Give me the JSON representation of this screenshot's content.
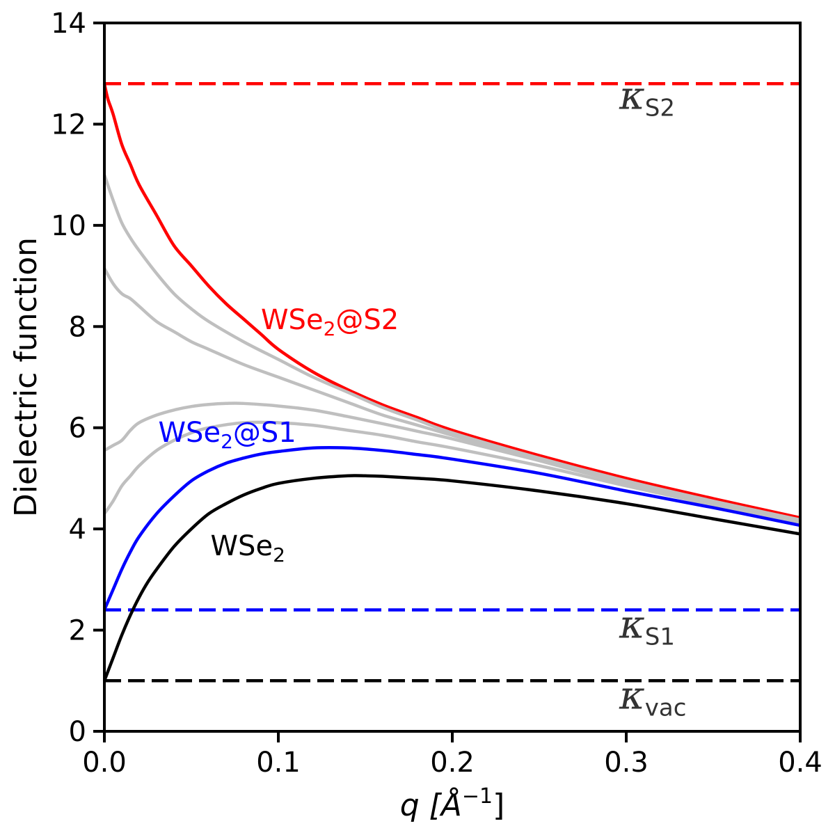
{
  "chart_data": {
    "type": "line",
    "title": "",
    "xlabel_prefix": "q [",
    "xlabel_unit": "Å",
    "xlabel_exp": "−1",
    "xlabel_suffix": "]",
    "ylabel": "Dielectric function",
    "xlim": [
      0.0,
      0.4
    ],
    "ylim": [
      0,
      14
    ],
    "grid": false,
    "xticks": [
      0.0,
      0.1,
      0.2,
      0.3,
      0.4
    ],
    "xtick_labels": [
      "0.0",
      "0.1",
      "0.2",
      "0.3",
      "0.4"
    ],
    "yticks": [
      0,
      2,
      4,
      6,
      8,
      10,
      12,
      14
    ],
    "ytick_labels": [
      "0",
      "2",
      "4",
      "6",
      "8",
      "10",
      "12",
      "14"
    ],
    "reference_lines": [
      {
        "name": "kappa-s2",
        "symbol": "κ",
        "sub": "S2",
        "y": 12.8,
        "color": "#ff0000",
        "label_x": 0.296,
        "label_y": 12.3
      },
      {
        "name": "kappa-s1",
        "symbol": "κ",
        "sub": "S1",
        "y": 2.4,
        "color": "#0000ff",
        "label_x": 0.296,
        "label_y": 1.85
      },
      {
        "name": "kappa-vac",
        "symbol": "κ",
        "sub": "vac",
        "y": 1.0,
        "color": "#000000",
        "label_x": 0.296,
        "label_y": 0.45
      }
    ],
    "series": [
      {
        "name": "WSe2@S2",
        "color": "#ff0000",
        "x": [
          0,
          0.002,
          0.005,
          0.01,
          0.015,
          0.02,
          0.03,
          0.04,
          0.05,
          0.06,
          0.07,
          0.08,
          0.09,
          0.1,
          0.12,
          0.14,
          0.16,
          0.18,
          0.2,
          0.25,
          0.3,
          0.35,
          0.4
        ],
        "y": [
          12.8,
          12.5,
          12.2,
          11.6,
          11.2,
          10.8,
          10.2,
          9.6,
          9.2,
          8.8,
          8.45,
          8.15,
          7.85,
          7.55,
          7.1,
          6.75,
          6.45,
          6.2,
          5.95,
          5.45,
          5.0,
          4.6,
          4.22
        ]
      },
      {
        "name": "intermediate-1",
        "color": "#bfbfbf",
        "x": [
          0,
          0.005,
          0.01,
          0.015,
          0.02,
          0.03,
          0.04,
          0.05,
          0.06,
          0.08,
          0.1,
          0.12,
          0.14,
          0.16,
          0.18,
          0.2,
          0.25,
          0.3,
          0.35,
          0.4
        ],
        "y": [
          11.0,
          10.5,
          10.05,
          9.75,
          9.5,
          9.05,
          8.65,
          8.35,
          8.1,
          7.7,
          7.35,
          7.0,
          6.7,
          6.4,
          6.15,
          5.9,
          5.4,
          4.95,
          4.55,
          4.18
        ]
      },
      {
        "name": "intermediate-2",
        "color": "#bfbfbf",
        "x": [
          0,
          0.005,
          0.01,
          0.015,
          0.02,
          0.03,
          0.04,
          0.05,
          0.06,
          0.08,
          0.1,
          0.12,
          0.14,
          0.16,
          0.18,
          0.2,
          0.25,
          0.3,
          0.35,
          0.4
        ],
        "y": [
          9.15,
          8.85,
          8.65,
          8.55,
          8.4,
          8.1,
          7.9,
          7.7,
          7.55,
          7.25,
          7.0,
          6.75,
          6.5,
          6.25,
          6.05,
          5.85,
          5.35,
          4.9,
          4.5,
          4.15
        ]
      },
      {
        "name": "intermediate-3",
        "color": "#bfbfbf",
        "x": [
          0,
          0.005,
          0.01,
          0.015,
          0.02,
          0.03,
          0.04,
          0.05,
          0.06,
          0.07,
          0.08,
          0.1,
          0.12,
          0.14,
          0.16,
          0.18,
          0.2,
          0.25,
          0.3,
          0.35,
          0.4
        ],
        "y": [
          5.55,
          5.65,
          5.75,
          5.95,
          6.1,
          6.25,
          6.35,
          6.42,
          6.46,
          6.48,
          6.48,
          6.43,
          6.35,
          6.22,
          6.08,
          5.93,
          5.78,
          5.35,
          4.92,
          4.52,
          4.15
        ]
      },
      {
        "name": "intermediate-4",
        "color": "#bfbfbf",
        "x": [
          0,
          0.005,
          0.01,
          0.015,
          0.02,
          0.03,
          0.04,
          0.05,
          0.06,
          0.08,
          0.1,
          0.12,
          0.14,
          0.16,
          0.18,
          0.2,
          0.25,
          0.3,
          0.35,
          0.4
        ],
        "y": [
          4.3,
          4.55,
          4.85,
          5.05,
          5.25,
          5.55,
          5.75,
          5.9,
          6.0,
          6.1,
          6.1,
          6.05,
          5.95,
          5.85,
          5.72,
          5.6,
          5.25,
          4.85,
          4.47,
          4.12
        ]
      },
      {
        "name": "WSe2@S1",
        "color": "#0000ff",
        "x": [
          0,
          0.005,
          0.01,
          0.015,
          0.02,
          0.03,
          0.04,
          0.05,
          0.06,
          0.07,
          0.08,
          0.09,
          0.1,
          0.12,
          0.14,
          0.16,
          0.18,
          0.2,
          0.25,
          0.3,
          0.35,
          0.4
        ],
        "y": [
          2.4,
          2.8,
          3.2,
          3.55,
          3.85,
          4.3,
          4.65,
          4.95,
          5.15,
          5.3,
          5.4,
          5.48,
          5.53,
          5.6,
          5.6,
          5.55,
          5.47,
          5.38,
          5.1,
          4.75,
          4.42,
          4.07
        ]
      },
      {
        "name": "WSe2",
        "color": "#000000",
        "x": [
          0,
          0.005,
          0.01,
          0.015,
          0.02,
          0.025,
          0.03,
          0.04,
          0.05,
          0.06,
          0.07,
          0.08,
          0.09,
          0.1,
          0.12,
          0.14,
          0.15,
          0.16,
          0.18,
          0.2,
          0.25,
          0.3,
          0.35,
          0.4
        ],
        "y": [
          1.0,
          1.45,
          1.9,
          2.3,
          2.65,
          2.95,
          3.2,
          3.65,
          4.0,
          4.3,
          4.5,
          4.67,
          4.8,
          4.9,
          5.0,
          5.05,
          5.05,
          5.04,
          5.0,
          4.95,
          4.75,
          4.5,
          4.2,
          3.9
        ]
      }
    ],
    "annotations": [
      {
        "name": "label-wse2-s2",
        "base": "WSe",
        "sub": "2",
        "tail": "@S2",
        "color": "#ff0000",
        "x": 0.09,
        "y": 7.95
      },
      {
        "name": "label-wse2-s1",
        "base": "WSe",
        "sub": "2",
        "tail": "@S1",
        "color": "#0000ff",
        "x": 0.031,
        "y": 5.72
      },
      {
        "name": "label-wse2",
        "base": "WSe",
        "sub": "2",
        "tail": "",
        "color": "#000000",
        "x": 0.061,
        "y": 3.48
      }
    ]
  }
}
